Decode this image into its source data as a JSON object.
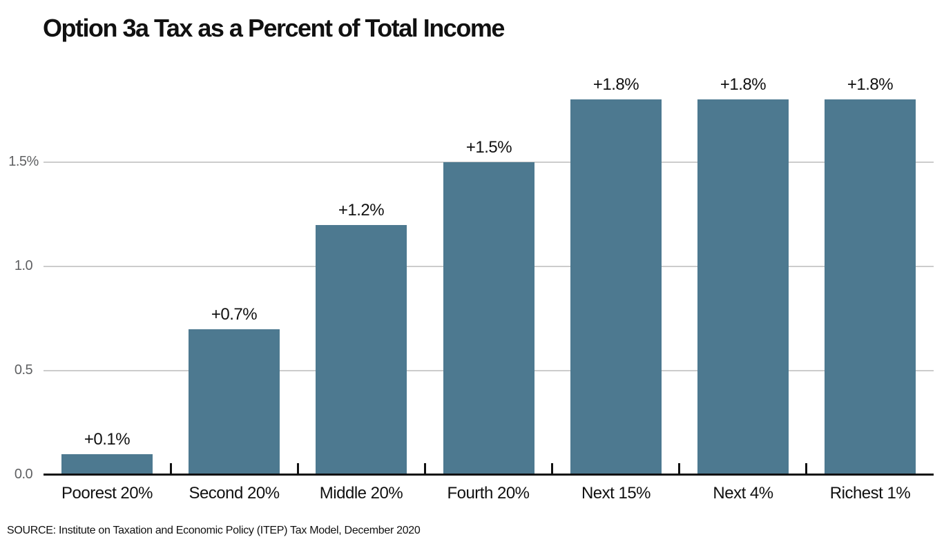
{
  "colors": {
    "bar": "#4d7990",
    "gridline": "#cccccc",
    "axis": "#111111",
    "tick_label": "#5f6062",
    "label": "#111111"
  },
  "chart_data": {
    "type": "bar",
    "title": "Option 3a Tax as a Percent of Total Income",
    "categories": [
      "Poorest 20%",
      "Second 20%",
      "Middle 20%",
      "Fourth 20%",
      "Next 15%",
      "Next 4%",
      "Richest 1%"
    ],
    "values": [
      0.1,
      0.7,
      1.2,
      1.5,
      1.8,
      1.8,
      1.8
    ],
    "bar_labels": [
      "+0.1%",
      "+0.7%",
      "+1.2%",
      "+1.5%",
      "+1.8%",
      "+1.8%",
      "+1.8%"
    ],
    "xlabel": "",
    "ylabel": "",
    "y_ticks": [
      {
        "value": 0.0,
        "label": "0.0"
      },
      {
        "value": 0.5,
        "label": "0.5"
      },
      {
        "value": 1.0,
        "label": "1.0"
      },
      {
        "value": 1.5,
        "label": "1.5%"
      }
    ],
    "ylim": [
      0,
      1.9
    ],
    "grid": true,
    "legend": false,
    "bar_color": "#4d7990",
    "source": "SOURCE: Institute on Taxation and Economic Policy (ITEP) Tax Model, December 2020"
  }
}
